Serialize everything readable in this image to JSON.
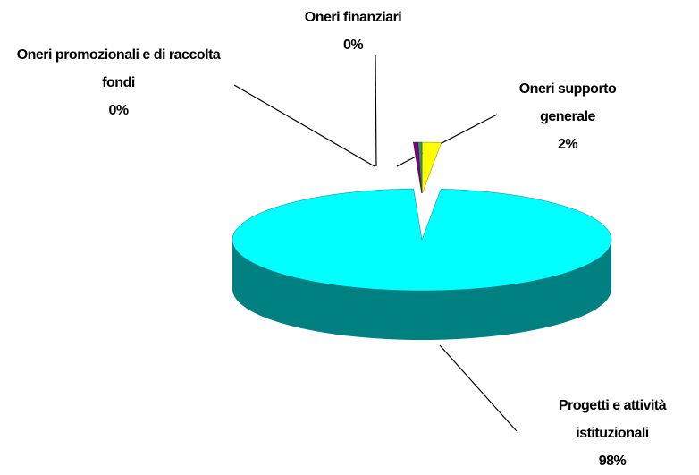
{
  "chart_data": {
    "type": "pie3d",
    "categories": [
      "Oneri supporto generale",
      "Progetti e attività istituzionali",
      "Oneri promozionali e di raccolta fondi",
      "Oneri finanziari"
    ],
    "values": [
      1.6,
      97.7,
      0.4,
      0.3
    ],
    "value_labels": [
      "2%",
      "98%",
      "0%",
      "0%"
    ],
    "colors": [
      "#ffff00",
      "#00ffff",
      "#800080",
      "#339966"
    ],
    "side_colors": [
      "#808000",
      "#008080",
      "#400040",
      "#1a4d33"
    ]
  }
}
